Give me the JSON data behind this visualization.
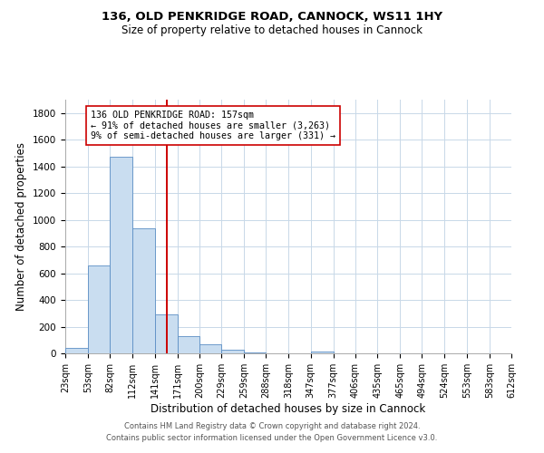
{
  "title": "136, OLD PENKRIDGE ROAD, CANNOCK, WS11 1HY",
  "subtitle": "Size of property relative to detached houses in Cannock",
  "xlabel": "Distribution of detached houses by size in Cannock",
  "ylabel": "Number of detached properties",
  "bar_color": "#c9ddf0",
  "bar_edge_color": "#5b8ec4",
  "vline_color": "#cc0000",
  "vline_x": 157,
  "annotation_line1": "136 OLD PENKRIDGE ROAD: 157sqm",
  "annotation_line2": "← 91% of detached houses are smaller (3,263)",
  "annotation_line3": "9% of semi-detached houses are larger (331) →",
  "bin_edges": [
    23,
    53,
    82,
    112,
    141,
    171,
    200,
    229,
    259,
    288,
    318,
    347,
    377,
    406,
    435,
    465,
    494,
    524,
    553,
    583,
    612
  ],
  "bin_counts": [
    40,
    655,
    1470,
    935,
    295,
    130,
    65,
    25,
    10,
    0,
    0,
    15,
    0,
    0,
    0,
    0,
    0,
    0,
    0,
    0
  ],
  "ylim": [
    0,
    1900
  ],
  "yticks": [
    0,
    200,
    400,
    600,
    800,
    1000,
    1200,
    1400,
    1600,
    1800
  ],
  "tick_labels": [
    "23sqm",
    "53sqm",
    "82sqm",
    "112sqm",
    "141sqm",
    "171sqm",
    "200sqm",
    "229sqm",
    "259sqm",
    "288sqm",
    "318sqm",
    "347sqm",
    "377sqm",
    "406sqm",
    "435sqm",
    "465sqm",
    "494sqm",
    "524sqm",
    "553sqm",
    "583sqm",
    "612sqm"
  ],
  "footer_line1": "Contains HM Land Registry data © Crown copyright and database right 2024.",
  "footer_line2": "Contains public sector information licensed under the Open Government Licence v3.0.",
  "background_color": "#ffffff",
  "grid_color": "#c8d8e8"
}
